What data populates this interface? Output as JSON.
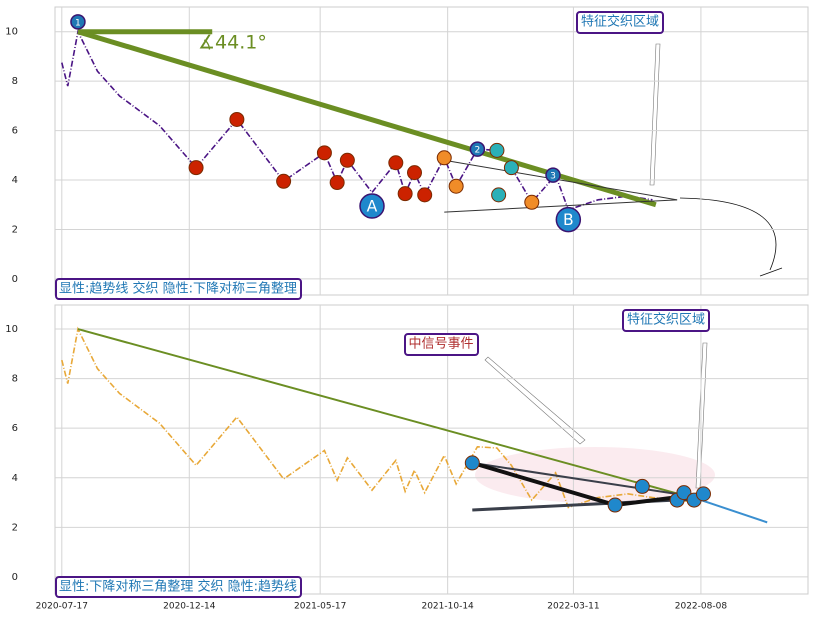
{
  "chart_data": [
    {
      "type": "line",
      "xlim": [
        "2020-07-09",
        "2022-12-12"
      ],
      "ylim": [
        -0.65,
        11
      ],
      "xticks": [
        "2020-07-17",
        "2020-12-14",
        "2021-05-17",
        "2021-10-14",
        "2022-03-11",
        "2022-08-08"
      ],
      "yticks": [
        0,
        2,
        4,
        6,
        8,
        10
      ],
      "grid": true,
      "series": [
        {
          "color": "#4b1585",
          "dash": true,
          "x": [
            "2020-07-17",
            "2020-07-24",
            "2020-08-05",
            "2020-08-28",
            "2020-09-23",
            "2020-11-09",
            "2020-12-22",
            "2021-02-08",
            "2021-04-04",
            "2021-05-22",
            "2021-06-06",
            "2021-06-18",
            "2021-07-17",
            "2021-08-14",
            "2021-08-25",
            "2021-09-05",
            "2021-09-17",
            "2021-10-10",
            "2021-10-24",
            "2021-11-18",
            "2021-12-11",
            "2021-12-28",
            "2022-01-21",
            "2022-02-18",
            "2022-03-05",
            "2022-04-09",
            "2022-05-14",
            "2022-06-12"
          ],
          "values": [
            8.75,
            7.8,
            10.0,
            8.4,
            7.4,
            6.2,
            4.5,
            6.45,
            3.95,
            5.1,
            3.9,
            4.8,
            3.5,
            4.7,
            3.45,
            4.3,
            3.4,
            4.9,
            3.75,
            5.25,
            5.2,
            4.5,
            3.1,
            4.2,
            2.8,
            3.2,
            3.35,
            3.2
          ]
        }
      ],
      "lines": [
        {
          "color": "#6b8e23",
          "width": 5,
          "x": [
            "2020-08-05",
            "2021-01-10"
          ],
          "y": [
            10,
            10
          ]
        },
        {
          "color": "#6b8e23",
          "width": 5,
          "x": [
            "2020-08-05",
            "2022-06-16"
          ],
          "y": [
            10,
            3.0
          ]
        },
        {
          "color": "#333333",
          "width": 1,
          "x": [
            "2021-10-10",
            "2022-07-11"
          ],
          "y": [
            2.7,
            3.2
          ]
        },
        {
          "color": "#333333",
          "width": 1,
          "x": [
            "2021-10-10",
            "2022-07-11"
          ],
          "y": [
            4.8,
            3.2
          ]
        }
      ],
      "points": [
        {
          "color": "#cc2200",
          "x": [
            "2020-12-22",
            "2021-02-08",
            "2021-04-04",
            "2021-05-22",
            "2021-06-06",
            "2021-06-18",
            "2021-08-14",
            "2021-08-25",
            "2021-09-05",
            "2021-09-17"
          ],
          "y": [
            4.5,
            6.45,
            3.95,
            5.1,
            3.9,
            4.8,
            4.7,
            3.45,
            4.3,
            3.4
          ]
        },
        {
          "color": "#f08c28",
          "x": [
            "2021-10-10",
            "2021-10-24",
            "2022-01-21"
          ],
          "y": [
            4.9,
            3.75,
            3.1
          ]
        },
        {
          "color": "#2ab0b8",
          "x": [
            "2021-12-11",
            "2021-12-28",
            "2021-12-13"
          ],
          "y": [
            5.2,
            4.5,
            3.4
          ]
        }
      ],
      "annotations": [
        {
          "text": "1",
          "x": "2020-08-05",
          "y": 10.4,
          "color": "#1f77b4",
          "r": 7
        },
        {
          "text": "2",
          "x": "2021-11-18",
          "y": 5.25,
          "color": "#1f77b4",
          "r": 7
        },
        {
          "text": "3",
          "x": "2022-02-15",
          "y": 4.2,
          "color": "#1f77b4",
          "r": 7
        },
        {
          "text": "A",
          "x": "2021-07-17",
          "y": 2.95,
          "color": "#1f88cc",
          "r": 12
        },
        {
          "text": "B",
          "x": "2022-03-05",
          "y": 2.4,
          "color": "#1f88cc",
          "r": 12
        }
      ],
      "angle_label": "∡44.1°",
      "region_label": "特征交织区域",
      "pattern_label": "显性:趋势线 交织 隐性:下降对称三角整理"
    },
    {
      "type": "line",
      "xlim": [
        "2020-07-09",
        "2022-12-12"
      ],
      "ylim": [
        -0.69,
        10.97
      ],
      "xticks": [
        "2020-07-17",
        "2020-12-14",
        "2021-05-17",
        "2021-10-14",
        "2022-03-11",
        "2022-08-08"
      ],
      "yticks": [
        0,
        2,
        4,
        6,
        8,
        10
      ],
      "grid": true,
      "series": [
        {
          "color": "#e8a838",
          "dash": true,
          "x": [
            "2020-07-17",
            "2020-07-24",
            "2020-08-05",
            "2020-08-28",
            "2020-09-23",
            "2020-11-09",
            "2020-12-22",
            "2021-02-08",
            "2021-04-04",
            "2021-05-22",
            "2021-06-06",
            "2021-06-18",
            "2021-07-17",
            "2021-08-14",
            "2021-08-25",
            "2021-09-05",
            "2021-09-17",
            "2021-10-10",
            "2021-10-24",
            "2021-11-18",
            "2021-12-11",
            "2021-12-28",
            "2022-01-21",
            "2022-02-18",
            "2022-03-05",
            "2022-04-09",
            "2022-05-14",
            "2022-06-12",
            "2022-07-11",
            "2022-08-08"
          ],
          "values": [
            8.75,
            7.8,
            10.0,
            8.4,
            7.4,
            6.2,
            4.5,
            6.45,
            3.95,
            5.1,
            3.9,
            4.8,
            3.5,
            4.7,
            3.45,
            4.3,
            3.4,
            4.9,
            3.75,
            5.25,
            5.2,
            4.5,
            3.1,
            4.2,
            2.8,
            3.2,
            3.35,
            3.2,
            3.1,
            3.0
          ]
        }
      ],
      "lines": [
        {
          "color": "#6b8e23",
          "width": 2,
          "x": [
            "2020-08-05",
            "2022-08-08"
          ],
          "y": [
            10,
            3.1
          ]
        },
        {
          "color": "#3a3f4a",
          "width": 3,
          "x": [
            "2021-11-12",
            "2022-08-08"
          ],
          "y": [
            2.7,
            3.15
          ]
        },
        {
          "color": "#3a3f4a",
          "width": 2,
          "x": [
            "2021-11-12",
            "2022-08-08"
          ],
          "y": [
            4.6,
            3.2
          ]
        },
        {
          "color": "#111111",
          "width": 4,
          "x": [
            "2021-11-12",
            "2022-04-29",
            "2022-08-11"
          ],
          "y": [
            4.6,
            2.9,
            3.35
          ]
        },
        {
          "color": "#3a8fd0",
          "width": 2,
          "x": [
            "2022-08-08",
            "2022-10-25"
          ],
          "y": [
            3.1,
            2.2
          ]
        }
      ],
      "points": [
        {
          "color": "#1f88cc",
          "x": [
            "2021-11-12",
            "2022-04-29",
            "2022-05-31",
            "2022-07-11",
            "2022-07-19",
            "2022-07-31",
            "2022-08-11"
          ],
          "y": [
            4.6,
            2.9,
            3.65,
            3.1,
            3.4,
            3.1,
            3.35
          ]
        }
      ],
      "annotations": [],
      "event_label": "中信号事件",
      "region_label": "特征交织区域",
      "pattern_label": "显性:下降对称三角整理 交织 隐性:趋势线"
    }
  ]
}
